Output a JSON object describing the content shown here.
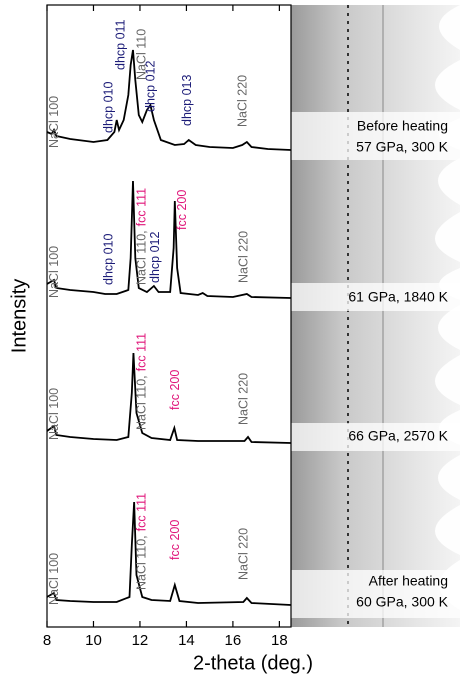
{
  "chart_data": {
    "type": "line",
    "xlabel": "2-theta (deg.)",
    "ylabel": "Intensity",
    "xlim": [
      8,
      18.5
    ],
    "xticks": [
      8,
      10,
      12,
      14,
      16,
      18
    ],
    "color": "#000000",
    "series": [
      {
        "x": [
          8.0,
          8.2,
          8.3,
          8.4,
          9.0,
          10.0,
          10.6,
          10.9,
          11.0,
          11.1,
          11.3,
          11.5,
          11.6,
          11.7,
          11.8,
          11.95,
          12.1,
          12.3,
          12.45,
          12.6,
          12.9,
          13.5,
          13.9,
          14.1,
          14.4,
          15.0,
          16.0,
          16.4,
          16.6,
          16.8,
          17.5,
          18.5
        ],
        "values": [
          18,
          16,
          20,
          14,
          11,
          8,
          10,
          18,
          30,
          20,
          30,
          55,
          85,
          100,
          70,
          35,
          28,
          40,
          45,
          30,
          10,
          5,
          6,
          10,
          5,
          3,
          2,
          5,
          8,
          3,
          1,
          0
        ],
        "peak_labels": [
          {
            "x": 8.34,
            "parts": [
              {
                "text": "NaCl 100",
                "color": "#666666"
              }
            ]
          },
          {
            "x": 10.7,
            "parts": [
              {
                "text": "dhcp 010",
                "color": "#1c1c78"
              }
            ]
          },
          {
            "x": 11.2,
            "parts": [
              {
                "text": "dhcp 011",
                "color": "#1c1c78"
              }
            ]
          },
          {
            "x": 12.1,
            "parts": [
              {
                "text": "NaCl 110",
                "color": "#666666"
              }
            ]
          },
          {
            "x": 12.5,
            "parts": [
              {
                "text": "dhcp 012",
                "color": "#1c1c78"
              }
            ]
          },
          {
            "x": 14.07,
            "parts": [
              {
                "text": "dhcp 013",
                "color": "#1c1c78"
              }
            ]
          },
          {
            "x": 16.45,
            "parts": [
              {
                "text": "NaCl 220",
                "color": "#666666"
              }
            ]
          }
        ],
        "conditions": [
          "Before heating",
          "57 GPa,  300 K"
        ]
      },
      {
        "x": [
          8.0,
          8.3,
          8.4,
          9.0,
          10.0,
          10.5,
          11.0,
          11.5,
          11.6,
          11.7,
          11.8,
          11.95,
          12.3,
          12.6,
          12.8,
          13.3,
          13.45,
          13.5,
          13.6,
          13.75,
          14.5,
          14.7,
          14.9,
          16.0,
          16.6,
          16.8,
          18.5
        ],
        "values": [
          14,
          18,
          10,
          8,
          6,
          4,
          4,
          8,
          40,
          117,
          40,
          10,
          6,
          12,
          6,
          6,
          50,
          97,
          30,
          5,
          3,
          5,
          2,
          1,
          4,
          1,
          0
        ],
        "peak_labels": [
          {
            "x": 8.34,
            "parts": [
              {
                "text": "NaCl 100",
                "color": "#666666"
              }
            ]
          },
          {
            "x": 10.7,
            "parts": [
              {
                "text": "dhcp 010",
                "color": "#1c1c78"
              }
            ]
          },
          {
            "x": 12.1,
            "parts": [
              {
                "text": "NaCl 110,",
                "color": "#666666"
              },
              {
                "text": "fcc 111",
                "color": "#e0157a"
              }
            ]
          },
          {
            "x": 12.7,
            "parts": [
              {
                "text": "dhcp 012",
                "color": "#1c1c78"
              }
            ]
          },
          {
            "x": 13.85,
            "parts": [
              {
                "text": "fcc 200",
                "color": "#e0157a"
              }
            ]
          },
          {
            "x": 16.5,
            "parts": [
              {
                "text": "NaCl 220",
                "color": "#666666"
              }
            ]
          }
        ],
        "conditions": [
          "61 GPa, 1840 K"
        ]
      },
      {
        "x": [
          8.0,
          8.3,
          8.4,
          9.0,
          10.0,
          11.0,
          11.5,
          11.65,
          11.72,
          11.85,
          12.1,
          12.5,
          13.3,
          13.48,
          13.6,
          14.5,
          16.5,
          16.65,
          16.8,
          18.5
        ],
        "values": [
          12,
          17,
          8,
          6,
          4,
          3,
          6,
          50,
          90,
          30,
          10,
          5,
          3,
          15,
          3,
          2,
          2,
          6,
          1,
          0
        ],
        "peak_labels": [
          {
            "x": 8.34,
            "parts": [
              {
                "text": "NaCl 100",
                "color": "#666666"
              }
            ]
          },
          {
            "x": 12.1,
            "parts": [
              {
                "text": "NaCl 110,",
                "color": "#666666"
              },
              {
                "text": "fcc 111",
                "color": "#e0157a"
              }
            ]
          },
          {
            "x": 13.55,
            "parts": [
              {
                "text": "fcc 200",
                "color": "#e0157a"
              }
            ]
          },
          {
            "x": 16.5,
            "parts": [
              {
                "text": "NaCl 220",
                "color": "#666666"
              }
            ]
          }
        ],
        "conditions": [
          "66 GPa, 2570 K"
        ]
      },
      {
        "x": [
          8.0,
          8.3,
          8.4,
          9.0,
          10.0,
          11.0,
          11.55,
          11.65,
          11.75,
          11.85,
          12.1,
          12.5,
          13.3,
          13.5,
          13.7,
          14.5,
          16.45,
          16.6,
          16.8,
          18.5
        ],
        "values": [
          8,
          12,
          5,
          4,
          3,
          3,
          8,
          60,
          103,
          30,
          8,
          5,
          4,
          20,
          4,
          2,
          3,
          7,
          2,
          0
        ],
        "peak_labels": [
          {
            "x": 8.34,
            "parts": [
              {
                "text": "NaCl 100",
                "color": "#666666"
              }
            ]
          },
          {
            "x": 12.1,
            "parts": [
              {
                "text": "NaCl 110,",
                "color": "#666666"
              },
              {
                "text": "fcc 111",
                "color": "#e0157a"
              }
            ]
          },
          {
            "x": 13.55,
            "parts": [
              {
                "text": "fcc 200",
                "color": "#e0157a"
              }
            ]
          },
          {
            "x": 16.5,
            "parts": [
              {
                "text": "NaCl 220",
                "color": "#666666"
              }
            ]
          }
        ],
        "conditions": [
          "After heating",
          "60 GPa,  300 K"
        ]
      }
    ]
  }
}
